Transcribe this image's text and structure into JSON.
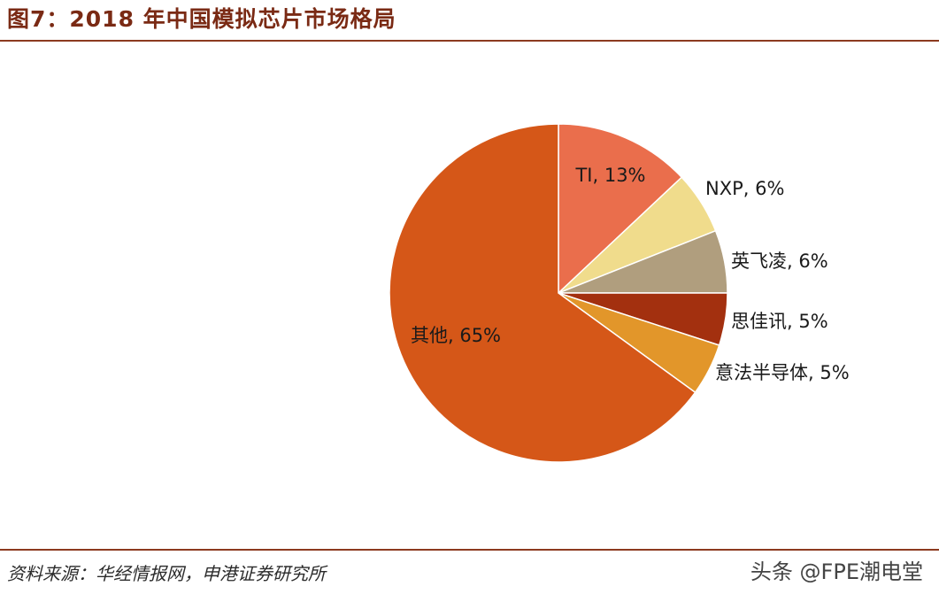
{
  "header": {
    "title": "图7：2018 年中国模拟芯片市场格局"
  },
  "footer": {
    "source": "资料来源：华经情报网，申港证券研究所",
    "watermark": "头条 @FPE潮电堂"
  },
  "chart_data": {
    "type": "pie",
    "title": "",
    "start_angle": "12 o'clock",
    "direction": "clockwise",
    "slices": [
      {
        "label": "TI, 13%",
        "name": "TI",
        "value": 13,
        "color": "#ea6e4c"
      },
      {
        "label": "NXP, 6%",
        "name": "NXP",
        "value": 6,
        "color": "#f0dc8c"
      },
      {
        "label": "英飞凌, 6%",
        "name": "英飞凌",
        "value": 6,
        "color": "#b09e7e"
      },
      {
        "label": "思佳讯, 5%",
        "name": "思佳讯",
        "value": 5,
        "color": "#a3300f"
      },
      {
        "label": "意法半导体, 5%",
        "name": "意法半导体",
        "value": 5,
        "color": "#e2962a"
      },
      {
        "label": "其他, 65%",
        "name": "其他",
        "value": 65,
        "color": "#d55718"
      }
    ]
  }
}
